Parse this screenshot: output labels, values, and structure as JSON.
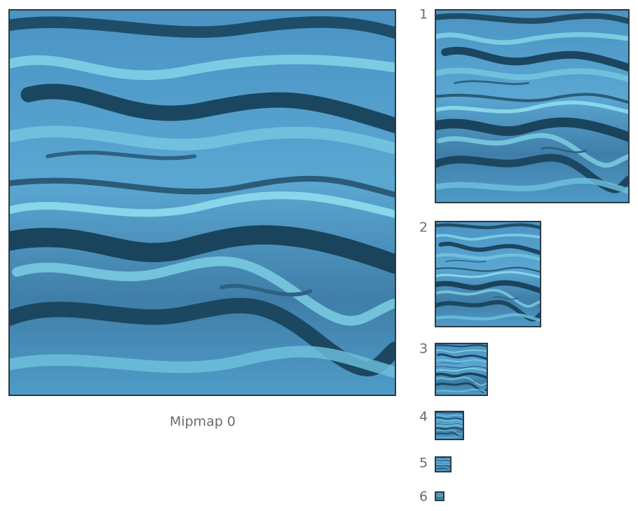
{
  "caption": "Mipmap 0",
  "levels": [
    1,
    2,
    3,
    4,
    5,
    6
  ]
}
